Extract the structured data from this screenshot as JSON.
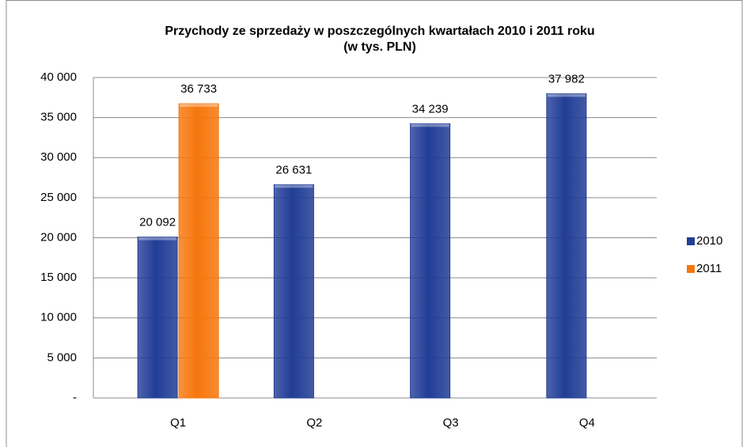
{
  "chart_data": {
    "type": "bar",
    "title": "Przychody ze sprzedaży w poszczególnych kwartałach 2010 i 2011 roku",
    "subtitle": "(w tys. PLN)",
    "categories": [
      "Q1",
      "Q2",
      "Q3",
      "Q4"
    ],
    "series": [
      {
        "name": "2010",
        "color": "#213d96",
        "values": [
          20092,
          26631,
          34239,
          37982
        ],
        "value_labels": [
          "20 092",
          "26 631",
          "34 239",
          "37 982"
        ]
      },
      {
        "name": "2011",
        "color": "#f7760c",
        "values": [
          36733,
          null,
          null,
          null
        ],
        "value_labels": [
          "36 733",
          null,
          null,
          null
        ]
      }
    ],
    "ylim": [
      0,
      40000
    ],
    "yticks": [
      {
        "value": 0,
        "label": "-"
      },
      {
        "value": 5000,
        "label": "5 000"
      },
      {
        "value": 10000,
        "label": "10 000"
      },
      {
        "value": 15000,
        "label": "15 000"
      },
      {
        "value": 20000,
        "label": "20 000"
      },
      {
        "value": 25000,
        "label": "25 000"
      },
      {
        "value": 30000,
        "label": "30 000"
      },
      {
        "value": 35000,
        "label": "35 000"
      },
      {
        "value": 40000,
        "label": "40 000"
      }
    ],
    "grid": true,
    "legend": "right"
  }
}
